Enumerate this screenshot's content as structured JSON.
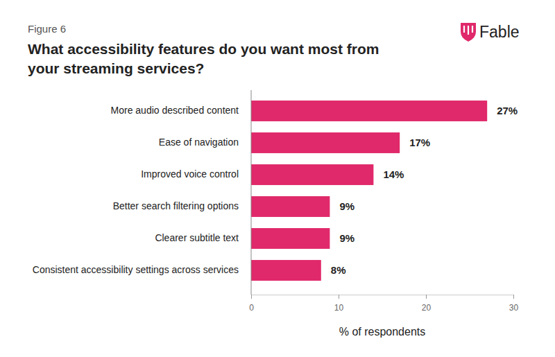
{
  "chart_data": {
    "type": "bar",
    "orientation": "horizontal",
    "annotations": [
      "Figure 6",
      "Fable"
    ],
    "title": "What accessibility features do you want most from your streaming services?",
    "x_label": "% of respondents",
    "categories": [
      "More audio described content",
      "Ease of navigation",
      "Improved voice control",
      "Better search filtering options",
      "Clearer subtitle text",
      "Consistent accessibility settings across services"
    ],
    "values": [
      27,
      17,
      14,
      9,
      9,
      8
    ],
    "value_labels": [
      "27%",
      "17%",
      "14%",
      "9%",
      "9%",
      "8%"
    ],
    "data_labels": true,
    "color": "#e0296a",
    "xlim": [
      0,
      30
    ],
    "xticks": [
      0,
      10,
      20,
      30
    ],
    "grid": false
  }
}
